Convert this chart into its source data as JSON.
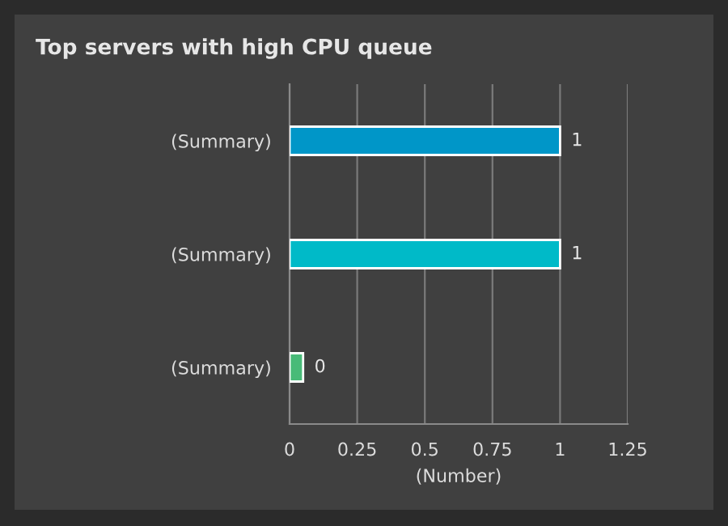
{
  "chart_data": {
    "type": "bar",
    "orientation": "horizontal",
    "title": "Top servers with high CPU queue",
    "xlabel": "(Number)",
    "categories": [
      "(Summary)",
      "(Summary)",
      "(Summary)"
    ],
    "values": [
      1,
      1,
      0.05
    ],
    "colors": [
      "#0096c8",
      "#00bac8",
      "#48bb78"
    ],
    "value_labels": [
      "1",
      "1",
      "0"
    ],
    "xlim": [
      0,
      1.25
    ],
    "xticks": [
      0,
      0.25,
      0.5,
      0.75,
      1,
      1.25
    ],
    "grid": "x",
    "legend": false
  }
}
